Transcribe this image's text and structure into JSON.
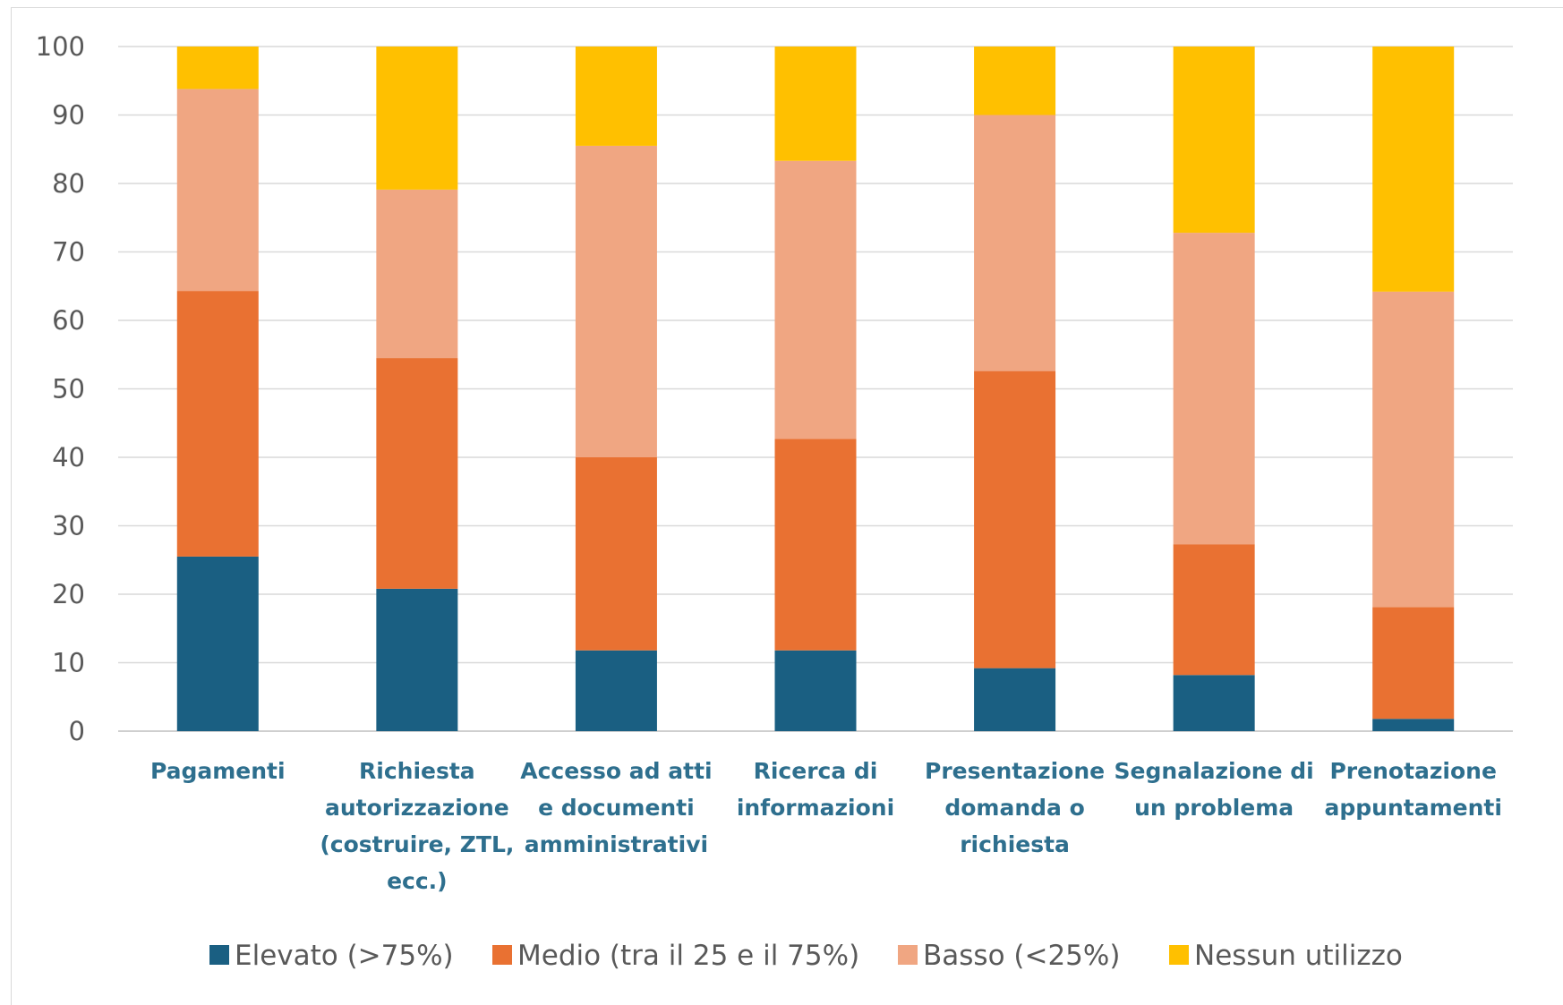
{
  "chart_data": {
    "type": "bar",
    "stacked": true,
    "categories": [
      [
        "Pagamenti"
      ],
      [
        "Richiesta",
        "autorizzazione",
        "(costruire, ZTL,",
        "ecc.)"
      ],
      [
        "Accesso ad atti",
        "e documenti",
        "amministrativi"
      ],
      [
        "Ricerca di",
        "informazioni"
      ],
      [
        "Presentazione",
        "domanda o",
        "richiesta"
      ],
      [
        "Segnalazione di",
        "un problema"
      ],
      [
        "Prenotazione",
        "appuntamenti"
      ]
    ],
    "series": [
      {
        "name": "Elevato (>75%)",
        "color": "#1a5f82",
        "values": [
          25.5,
          20.8,
          11.8,
          11.8,
          9.2,
          8.2,
          1.8
        ]
      },
      {
        "name": "Medio (tra il 25 e il 75%)",
        "color": "#e97132",
        "values": [
          38.8,
          33.7,
          28.2,
          30.9,
          43.4,
          19.1,
          16.3
        ]
      },
      {
        "name": "Basso (<25%)",
        "color": "#f0a682",
        "values": [
          29.5,
          24.6,
          45.5,
          40.6,
          37.4,
          45.5,
          46.1
        ]
      },
      {
        "name": "Nessun utilizzo",
        "color": "#ffc000",
        "values": [
          6.2,
          20.9,
          14.5,
          16.7,
          10.0,
          27.2,
          35.8
        ]
      }
    ],
    "y_ticks": [
      0,
      10,
      20,
      30,
      40,
      50,
      60,
      70,
      80,
      90,
      100
    ],
    "ylim": [
      0,
      100
    ],
    "grid": true,
    "legend_position": "bottom"
  }
}
